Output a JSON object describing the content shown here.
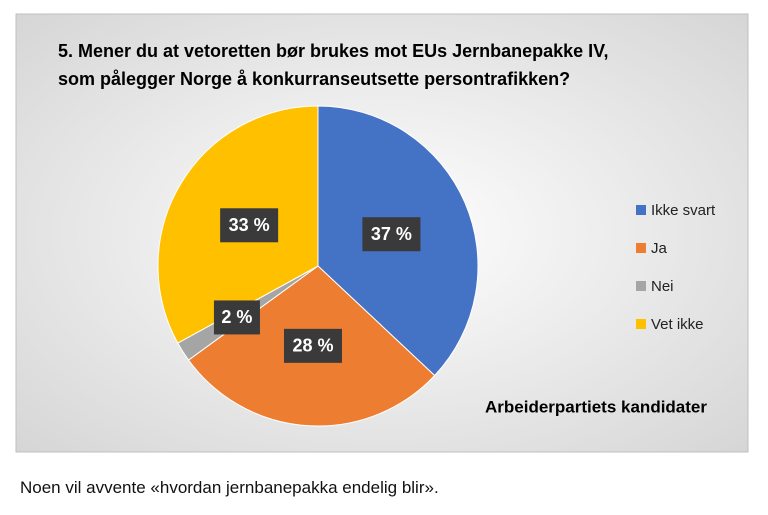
{
  "chart_data": {
    "type": "pie",
    "title": [
      "5. Mener du at vetoretten bør brukes mot EUs Jernbanepakke IV,",
      "som pålegger Norge å konkurranseutsette persontrafikken?"
    ],
    "categories": [
      "Ikke svart",
      "Ja",
      "Nei",
      "Vet ikke"
    ],
    "values": [
      37,
      28,
      2,
      33
    ],
    "value_labels": [
      "37 %",
      "28 %",
      "2 %",
      "33 %"
    ],
    "colors": [
      "#4472c4",
      "#ed7d31",
      "#a5a5a5",
      "#ffc000"
    ],
    "annotation": "Arbeiderpartiets kandidater",
    "legend": "right"
  },
  "caption": "Noen vil avvente «hvordan jernbanepakka endelig blir»."
}
